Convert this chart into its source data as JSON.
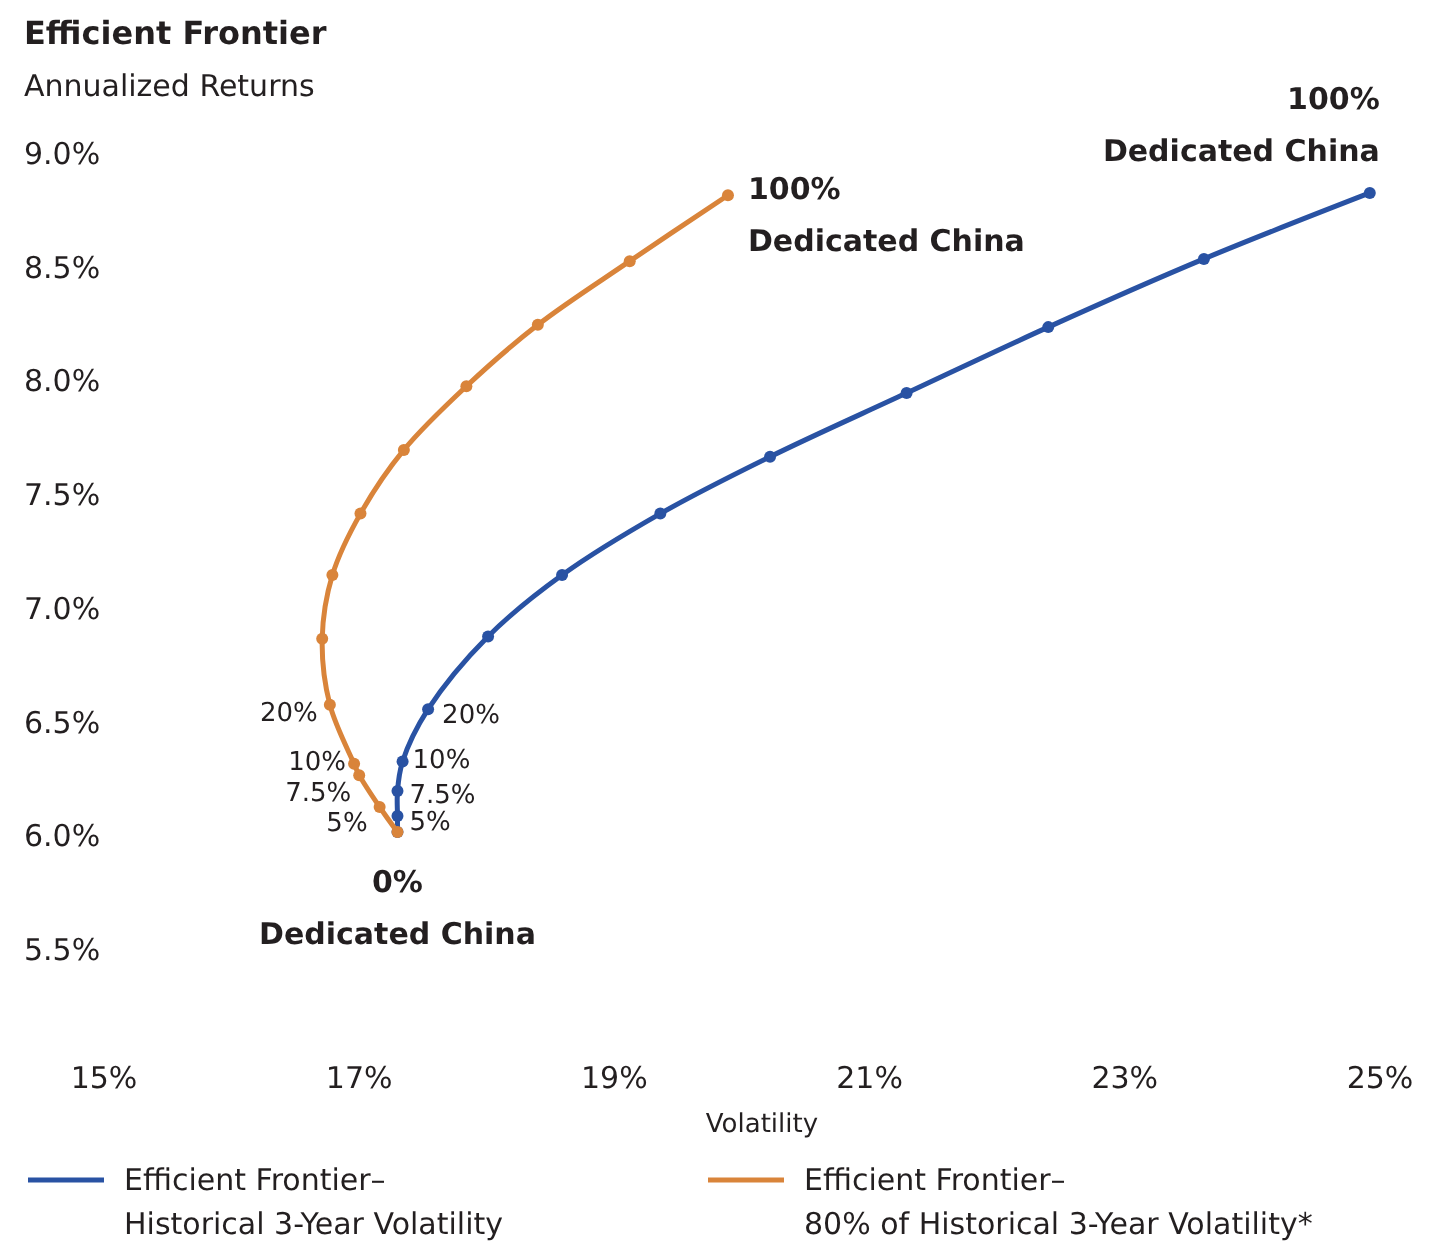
{
  "chart_data": {
    "type": "line",
    "title": "Efficient Frontier",
    "ylabel": "Annualized Returns",
    "xlabel": "Volatility",
    "xlim": [
      15,
      25
    ],
    "ylim": [
      5.5,
      9.0
    ],
    "xticks": [
      {
        "value": 15,
        "label": "15%"
      },
      {
        "value": 17,
        "label": "17%"
      },
      {
        "value": 19,
        "label": "19%"
      },
      {
        "value": 21,
        "label": "21%"
      },
      {
        "value": 23,
        "label": "23%"
      },
      {
        "value": 25,
        "label": "25%"
      }
    ],
    "yticks": [
      {
        "value": 5.5,
        "label": "5.5%"
      },
      {
        "value": 6,
        "label": "6.0%"
      },
      {
        "value": 6.5,
        "label": "6.5%"
      },
      {
        "value": 7,
        "label": "7.0%"
      },
      {
        "value": 7.5,
        "label": "7.5%"
      },
      {
        "value": 8,
        "label": "8.0%"
      },
      {
        "value": 8.5,
        "label": "8.5%"
      },
      {
        "value": 9,
        "label": "9.0%"
      }
    ],
    "grid": false,
    "legend": "bottom",
    "marker": "circle",
    "line_style": "solid",
    "series": [
      {
        "name": "Efficient Frontier–\nHistorical 3-Year Volatility",
        "color": "#2952a3",
        "x": [
          17.3,
          17.3,
          17.3,
          17.34,
          17.54,
          18.01,
          18.59,
          19.36,
          20.22,
          21.29,
          22.4,
          23.62,
          24.92
        ],
        "values": [
          6.01,
          6.08,
          6.19,
          6.32,
          6.55,
          6.87,
          7.14,
          7.41,
          7.66,
          7.94,
          8.23,
          8.53,
          8.82
        ]
      },
      {
        "name": "Efficient Frontier–\n80% of Historical 3-Year Volatility*",
        "color": "#d9843a",
        "x": [
          17.3,
          17.16,
          17.0,
          16.96,
          16.77,
          16.71,
          16.79,
          17.01,
          17.35,
          17.84,
          18.4,
          19.12,
          19.89
        ],
        "values": [
          6.01,
          6.12,
          6.26,
          6.31,
          6.57,
          6.86,
          7.14,
          7.41,
          7.69,
          7.97,
          8.24,
          8.52,
          8.81
        ]
      }
    ],
    "annotations": [
      {
        "text": "0%\nDedicated China",
        "x": 17.3,
        "y": 6.01
      },
      {
        "text": "100%\nDedicated China",
        "x": 19.89,
        "y": 8.81
      },
      {
        "text": "100%\nDedicated China",
        "x": 24.92,
        "y": 8.82
      },
      {
        "text": "5%",
        "x": 17.16,
        "y": 6.12
      },
      {
        "text": "7.5%",
        "x": 17.0,
        "y": 6.26
      },
      {
        "text": "10%",
        "x": 16.96,
        "y": 6.31
      },
      {
        "text": "20%",
        "x": 16.77,
        "y": 6.57
      },
      {
        "text": "5%",
        "x": 17.3,
        "y": 6.08
      },
      {
        "text": "7.5%",
        "x": 17.3,
        "y": 6.19
      },
      {
        "text": "10%",
        "x": 17.34,
        "y": 6.32
      },
      {
        "text": "20%",
        "x": 17.54,
        "y": 6.55
      }
    ]
  }
}
